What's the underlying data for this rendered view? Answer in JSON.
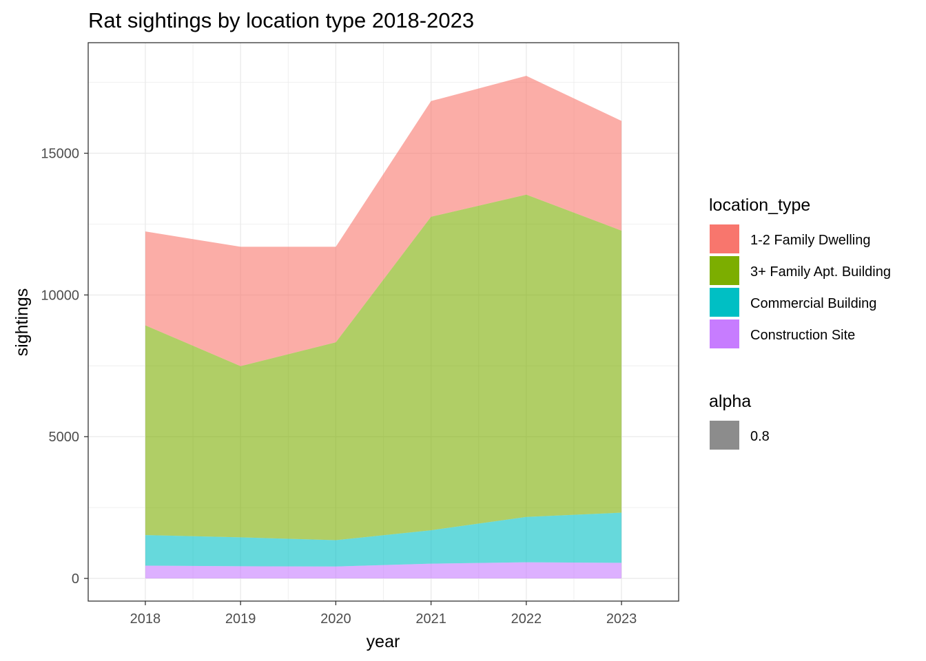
{
  "chart_data": {
    "type": "area",
    "stacked": true,
    "title": "Rat sightings by location type 2018-2023",
    "xlabel": "year",
    "ylabel": "sightings",
    "x": [
      2018,
      2019,
      2020,
      2021,
      2022,
      2023
    ],
    "xlim": [
      2017.4,
      2023.6
    ],
    "ylim": [
      -800,
      18900
    ],
    "y_ticks": [
      0,
      5000,
      10000,
      15000
    ],
    "y_minor_ticks": [
      2500,
      7500,
      12500,
      17500
    ],
    "grid": true,
    "fill_alpha": 0.6,
    "series": [
      {
        "name": "Construction Site",
        "color": "#C77CFF",
        "values": [
          450,
          430,
          420,
          520,
          570,
          550
        ]
      },
      {
        "name": "Commercial Building",
        "color": "#00BFC4",
        "values": [
          1080,
          1020,
          930,
          1180,
          1600,
          1770
        ]
      },
      {
        "name": "3+ Family Apt. Building",
        "color": "#7CAE00",
        "values": [
          7400,
          6040,
          6980,
          11060,
          11370,
          9950
        ]
      },
      {
        "name": "1-2 Family Dwelling",
        "color": "#F8766D",
        "values": [
          3310,
          4210,
          3370,
          4080,
          4190,
          3870
        ]
      }
    ],
    "legend": {
      "position": "right",
      "title": "location_type",
      "order": [
        "1-2 Family Dwelling",
        "3+ Family Apt. Building",
        "Commercial Building",
        "Construction Site"
      ]
    },
    "alpha_legend": {
      "title": "alpha",
      "label": "0.8",
      "color": "#8c8c8c"
    }
  }
}
